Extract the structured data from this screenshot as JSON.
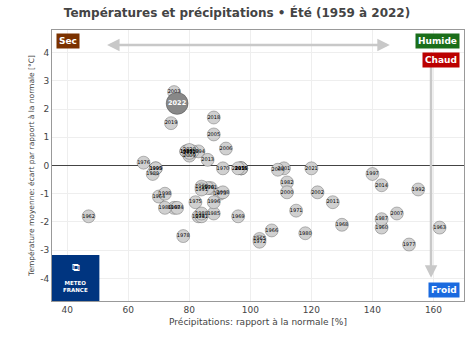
{
  "chart_data": {
    "type": "scatter",
    "title": "Températures et précipitations • Été (1959 à 2022)",
    "xlabel": "Précipitations: rapport à la normale [%]",
    "ylabel": "Température moyenne: écart par rapport à la normale [°C]",
    "xlim": [
      35,
      170
    ],
    "ylim": [
      -4.8,
      4.8
    ],
    "xticks": [
      40,
      60,
      80,
      100,
      120,
      140,
      160
    ],
    "yticks": [
      -4,
      -3,
      -2,
      -1,
      0,
      1,
      2,
      3,
      4
    ],
    "grid": true,
    "labels": [
      "1959",
      "1960",
      "1961",
      "1962",
      "1963",
      "1964",
      "1965",
      "1966",
      "1967",
      "1968",
      "1969",
      "1970",
      "1971",
      "1972",
      "1973",
      "1974",
      "1975",
      "1976",
      "1977",
      "1978",
      "1979",
      "1980",
      "1981",
      "1982",
      "1983",
      "1984",
      "1985",
      "1986",
      "1987",
      "1988",
      "1989",
      "1990",
      "1991",
      "1992",
      "1993",
      "1994",
      "1995",
      "1996",
      "1997",
      "1998",
      "1999",
      "2000",
      "2001",
      "2002",
      "2003",
      "2004",
      "2005",
      "2006",
      "2007",
      "2008",
      "2009",
      "2010",
      "2011",
      "2012",
      "2013",
      "2014",
      "2015",
      "2016",
      "2017",
      "2018",
      "2019",
      "2020",
      "2021",
      "2022"
    ],
    "x": [
      97,
      143,
      87,
      47,
      162,
      70,
      103,
      107,
      75,
      130,
      96,
      91,
      115,
      103,
      90,
      83,
      82,
      65,
      152,
      78,
      86,
      118,
      84,
      112,
      79,
      76,
      88,
      72,
      143,
      84,
      68,
      84,
      84,
      155,
      79,
      83,
      69,
      88,
      140,
      72,
      69,
      112,
      111,
      122,
      75,
      109,
      88,
      92,
      148,
      91,
      80,
      81,
      127,
      80,
      86,
      143,
      97,
      97,
      96,
      88,
      74,
      80,
      120,
      76
    ],
    "values": [
      -0.1,
      -2.2,
      -0.8,
      -1.8,
      -2.2,
      -1.1,
      -2.6,
      -2.3,
      -1.5,
      -2.1,
      -1.8,
      -0.1,
      -1.6,
      -2.7,
      -1.0,
      -1.8,
      -1.3,
      0.1,
      -2.8,
      -2.5,
      -0.8,
      -2.4,
      -1.8,
      -0.6,
      0.5,
      -1.5,
      -1.7,
      -1.5,
      -1.9,
      -1.7,
      -0.3,
      -0.75,
      -0.85,
      -0.85,
      0.5,
      0.5,
      -0.1,
      -1.3,
      -0.3,
      -1.0,
      -0.1,
      -0.95,
      -0.1,
      -0.95,
      2.6,
      -0.15,
      1.1,
      0.6,
      -1.7,
      -0.95,
      0.35,
      0.5,
      -1.3,
      0.45,
      0.2,
      -0.7,
      -0.1,
      -0.1,
      -0.1,
      1.7,
      1.5,
      0.55,
      -0.1,
      2.2
    ],
    "colors": [
      "#d0d0d0",
      "#d0d0d0",
      "#d0d0d0",
      "#d0d0d0",
      "#d0d0d0",
      "#d0d0d0",
      "#d0d0d0",
      "#d0d0d0",
      "#d0d0d0",
      "#d0d0d0",
      "#d0d0d0",
      "#d0d0d0",
      "#d0d0d0",
      "#d0d0d0",
      "#d0d0d0",
      "#d0d0d0",
      "#d0d0d0",
      "#d0d0d0",
      "#d0d0d0",
      "#d0d0d0",
      "#d0d0d0",
      "#d0d0d0",
      "#d0d0d0",
      "#d0d0d0",
      "#d0d0d0",
      "#d0d0d0",
      "#d0d0d0",
      "#d0d0d0",
      "#d0d0d0",
      "#d0d0d0",
      "#d0d0d0",
      "#d0d0d0",
      "#d0d0d0",
      "#d0d0d0",
      "#d0d0d0",
      "#d0d0d0",
      "#d0d0d0",
      "#d0d0d0",
      "#d0d0d0",
      "#d0d0d0",
      "#d0d0d0",
      "#d0d0d0",
      "#d0d0d0",
      "#d0d0d0",
      "#d0d0d0",
      "#d0d0d0",
      "#d0d0d0",
      "#d0d0d0",
      "#d0d0d0",
      "#d0d0d0",
      "#d0d0d0",
      "#d0d0d0",
      "#d0d0d0",
      "#d0d0d0",
      "#d0d0d0",
      "#d0d0d0",
      "#d0d0d0",
      "#d0d0d0",
      "#d0d0d0",
      "#d0d0d0",
      "#d0d0d0",
      "#d0d0d0",
      "#d0d0d0",
      "#888888"
    ],
    "annotations": [
      {
        "text": "Sec",
        "color": "#7B3200"
      },
      {
        "text": "Humide",
        "color": "#1a6e1a"
      },
      {
        "text": "Chaud",
        "color": "#bb0000"
      },
      {
        "text": "Froid",
        "color": "#1a6adf"
      },
      {
        "text": "⧉",
        "color": "#003580"
      },
      {
        "text": "METEO\nFRANCE",
        "color": "#003580"
      }
    ]
  }
}
